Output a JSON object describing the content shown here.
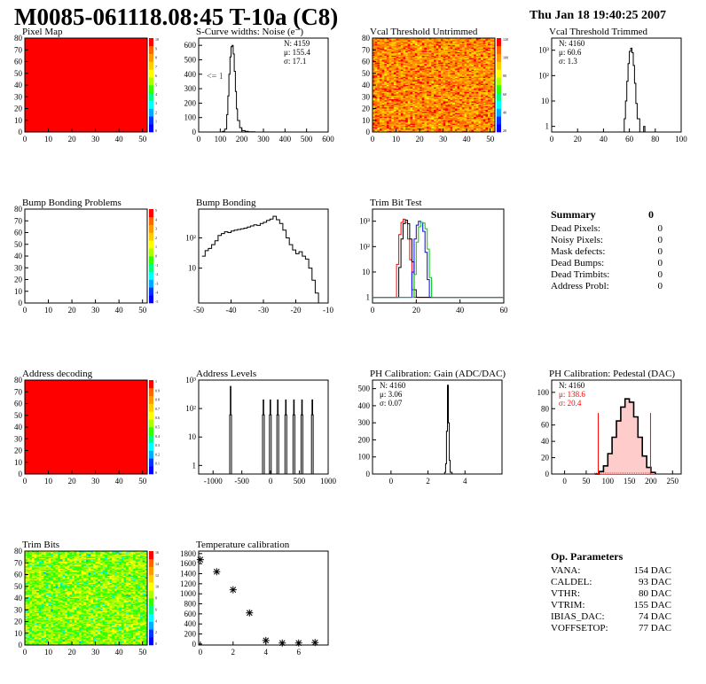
{
  "page": {
    "title": "M0085-061118.08:45 T-10a (C8)",
    "date": "Thu Jan 18 19:40:25 2007"
  },
  "colors": {
    "red": "#ff0000",
    "green": "#00cc00",
    "blue": "#0000ff",
    "black": "#000000",
    "palette": [
      "#0000ff",
      "#0033ff",
      "#00aaff",
      "#00ffff",
      "#00ff80",
      "#33ff00",
      "#aaff00",
      "#ffff00",
      "#ffcc00",
      "#ff9900",
      "#ff6600",
      "#ff0000"
    ]
  },
  "chart_data": [
    {
      "id": "pixel-map",
      "type": "heatmap",
      "title": "Pixel Map",
      "xlim": [
        0,
        52
      ],
      "ylim": [
        0,
        80
      ],
      "xticks": [
        "0",
        "10",
        "20",
        "30",
        "40",
        "50"
      ],
      "yticks": [
        "0",
        "10",
        "20",
        "30",
        "40",
        "50",
        "60",
        "70",
        "80"
      ],
      "fill": "uniform",
      "fill_level": 1.0,
      "colorbar_labels": [
        "10",
        "9",
        "8",
        "7",
        "6",
        "5",
        "4",
        "3",
        "2",
        "1",
        "0"
      ]
    },
    {
      "id": "scurve-noise",
      "type": "line",
      "title": "S-Curve widths: Noise (e⁻)",
      "xlim": [
        0,
        600
      ],
      "ylim": [
        0,
        650
      ],
      "xticks": [
        "0",
        "100",
        "200",
        "300",
        "400",
        "500",
        "600"
      ],
      "yticks": [
        "0",
        "100",
        "200",
        "300",
        "400",
        "500",
        "600"
      ],
      "annotation": "<= 1",
      "stats": [
        "N: 4159",
        "μ: 155.4",
        "σ: 17.1"
      ],
      "series": [
        {
          "x": [
            100,
            110,
            120,
            130,
            135,
            140,
            145,
            150,
            155,
            160,
            165,
            170,
            175,
            180,
            190,
            200,
            215,
            230,
            260
          ],
          "y": [
            0,
            5,
            20,
            120,
            250,
            400,
            520,
            590,
            600,
            540,
            420,
            280,
            160,
            80,
            30,
            10,
            4,
            2,
            0
          ]
        }
      ]
    },
    {
      "id": "vcal-untrimmed",
      "type": "heatmap",
      "title": "Vcal Threshold Untrimmed",
      "xlim": [
        0,
        52
      ],
      "ylim": [
        0,
        80
      ],
      "xticks": [
        "0",
        "10",
        "20",
        "30",
        "40",
        "50"
      ],
      "yticks": [
        "0",
        "10",
        "20",
        "30",
        "40",
        "50",
        "60",
        "70",
        "80"
      ],
      "fill": "noise-hot",
      "fill_level": 0.85,
      "colorbar_labels": [
        "120",
        "100",
        "80",
        "60",
        "40",
        "20"
      ]
    },
    {
      "id": "vcal-trimmed",
      "type": "line",
      "title": "Vcal Threshold Trimmed",
      "ylog": true,
      "xlim": [
        0,
        100
      ],
      "ylim": [
        0.6,
        3000
      ],
      "xticks": [
        "0",
        "20",
        "40",
        "60",
        "80",
        "100"
      ],
      "yticks": [
        "1",
        "10",
        "10²",
        "10³"
      ],
      "stats": [
        "N: 4160",
        "μ: 60.6",
        "σ:  1.3"
      ],
      "series": [
        {
          "x": [
            54,
            56,
            57,
            58,
            59,
            60,
            61,
            62,
            63,
            64,
            65,
            66,
            68
          ],
          "y": [
            0.6,
            2,
            10,
            60,
            300,
            900,
            1200,
            800,
            250,
            50,
            8,
            2,
            0.6
          ]
        },
        {
          "x": [
            71,
            71,
            72,
            72
          ],
          "y": [
            0.6,
            1,
            1,
            0.6
          ]
        }
      ]
    },
    {
      "id": "bump-problems",
      "type": "heatmap",
      "title": "Bump Bonding Problems",
      "xlim": [
        0,
        52
      ],
      "ylim": [
        0,
        80
      ],
      "xticks": [
        "0",
        "10",
        "20",
        "30",
        "40",
        "50"
      ],
      "yticks": [
        "0",
        "10",
        "20",
        "30",
        "40",
        "50",
        "60",
        "70",
        "80"
      ],
      "fill": "empty",
      "fill_level": 0,
      "colorbar_labels": [
        "5",
        "4",
        "3",
        "2",
        "1",
        "0",
        "-1",
        "-2",
        "-3",
        "-4",
        "-5"
      ]
    },
    {
      "id": "bump-bonding",
      "type": "line",
      "title": "Bump Bonding",
      "ylog": true,
      "xlim": [
        -50,
        -10
      ],
      "ylim": [
        0.7,
        900
      ],
      "xticks": [
        "-50",
        "-40",
        "-30",
        "-20",
        "-10"
      ],
      "yticks": [
        "10",
        "10²"
      ],
      "series": [
        {
          "x": [
            -49,
            -48,
            -47,
            -46,
            -45,
            -44,
            -43,
            -42,
            -41,
            -40,
            -39,
            -38,
            -37,
            -36,
            -35,
            -34,
            -33,
            -32,
            -31,
            -30,
            -29,
            -28,
            -27,
            -26,
            -25,
            -24,
            -23,
            -22,
            -21,
            -20,
            -19,
            -18,
            -17,
            -16,
            -15,
            -14,
            -13
          ],
          "y": [
            25,
            38,
            45,
            60,
            80,
            120,
            140,
            160,
            150,
            170,
            180,
            190,
            200,
            210,
            230,
            250,
            270,
            260,
            300,
            330,
            380,
            420,
            520,
            400,
            300,
            180,
            100,
            60,
            40,
            30,
            35,
            25,
            20,
            10,
            4,
            1.5,
            0.7
          ]
        }
      ]
    },
    {
      "id": "trim-bit-test",
      "type": "line",
      "title": "Trim Bit Test",
      "ylog": true,
      "xlim": [
        0,
        60
      ],
      "ylim": [
        0.6,
        3000
      ],
      "xticks": [
        "0",
        "20",
        "40",
        "60"
      ],
      "yticks": [
        "1",
        "10",
        "10²",
        "10³"
      ],
      "series": [
        {
          "color": "red",
          "x": [
            0,
            10,
            11,
            12,
            13,
            14,
            15,
            16,
            17,
            18,
            19,
            60
          ],
          "y": [
            1,
            1,
            20,
            300,
            900,
            1200,
            900,
            200,
            30,
            2,
            1,
            1
          ]
        },
        {
          "color": "black",
          "x": [
            0,
            11,
            12,
            13,
            14,
            15,
            16,
            17,
            18,
            19,
            20,
            60
          ],
          "y": [
            1,
            1,
            15,
            200,
            800,
            1100,
            800,
            200,
            25,
            2,
            1,
            1
          ]
        },
        {
          "color": "blue",
          "x": [
            0,
            17,
            18,
            19,
            20,
            21,
            22,
            23,
            24,
            25,
            26,
            60
          ],
          "y": [
            1,
            1,
            10,
            200,
            700,
            1000,
            900,
            400,
            60,
            5,
            1,
            1
          ]
        },
        {
          "color": "green",
          "x": [
            0,
            18,
            19,
            20,
            21,
            22,
            23,
            24,
            25,
            26,
            27,
            60
          ],
          "y": [
            1,
            1,
            8,
            150,
            600,
            900,
            850,
            500,
            80,
            6,
            1,
            1
          ]
        }
      ]
    },
    {
      "id": "address-decoding",
      "type": "heatmap",
      "title": "Address decoding",
      "xlim": [
        0,
        52
      ],
      "ylim": [
        0,
        80
      ],
      "xticks": [
        "0",
        "10",
        "20",
        "30",
        "40",
        "50"
      ],
      "yticks": [
        "0",
        "10",
        "20",
        "30",
        "40",
        "50",
        "60",
        "70",
        "80"
      ],
      "fill": "uniform",
      "fill_level": 1.0,
      "colorbar_labels": [
        "1",
        "0.9",
        "0.8",
        "0.7",
        "0.6",
        "0.5",
        "0.4",
        "0.3",
        "0.2",
        "0.1",
        "0"
      ]
    },
    {
      "id": "address-levels",
      "type": "line",
      "title": "Address Levels",
      "ylog": true,
      "xlim": [
        -1250,
        1000
      ],
      "ylim": [
        0.5,
        1000
      ],
      "xticks": [
        "-1000",
        "-500",
        "0",
        "500",
        "1000"
      ],
      "yticks": [
        "1",
        "10",
        "10²",
        "10³"
      ],
      "series": [
        {
          "x": [
            -720,
            -710,
            -700,
            -690,
            -680,
            -150,
            -140,
            -130,
            -120,
            -110,
            -30,
            -20,
            -10,
            0,
            10,
            100,
            110,
            120,
            130,
            140,
            240,
            250,
            260,
            270,
            280,
            380,
            390,
            400,
            410,
            420,
            520,
            530,
            540,
            550,
            560,
            700,
            710,
            720,
            730,
            740
          ],
          "y": [
            0.5,
            60,
            600,
            60,
            0.5,
            0.5,
            60,
            200,
            60,
            0.5,
            0.5,
            60,
            200,
            60,
            0.5,
            0.5,
            60,
            200,
            60,
            0.5,
            0.5,
            60,
            200,
            60,
            0.5,
            0.5,
            60,
            200,
            60,
            0.5,
            0.5,
            60,
            200,
            60,
            0.5,
            0.5,
            60,
            200,
            60,
            0.5
          ]
        }
      ]
    },
    {
      "id": "ph-gain",
      "type": "line",
      "title": "PH Calibration: Gain (ADC/DAC)",
      "xlim": [
        -1,
        6
      ],
      "ylim": [
        0,
        550
      ],
      "xticks": [
        "0",
        "2",
        "4"
      ],
      "yticks": [
        "0",
        "100",
        "200",
        "300",
        "400",
        "500"
      ],
      "stats": [
        "N: 4160",
        "μ: 3.06",
        "σ: 0.07"
      ],
      "series": [
        {
          "x": [
            2.8,
            2.9,
            2.95,
            3.0,
            3.05,
            3.1,
            3.15,
            3.2,
            3.3
          ],
          "y": [
            0,
            10,
            60,
            250,
            520,
            300,
            80,
            10,
            0
          ]
        }
      ]
    },
    {
      "id": "ph-pedestal",
      "type": "line",
      "title": "PH Calibration: Pedestal (DAC)",
      "xlim": [
        -30,
        270
      ],
      "ylim": [
        0,
        115
      ],
      "xticks": [
        "0",
        "50",
        "100",
        "150",
        "200",
        "250"
      ],
      "yticks": [
        "0",
        "20",
        "40",
        "60",
        "80",
        "100"
      ],
      "stats": [
        "N: 4160",
        "μ: 138.6",
        "σ: 20.4"
      ],
      "stats_colors": [
        "black",
        "red",
        "red"
      ],
      "markers": [
        78,
        199
      ],
      "series": [
        {
          "x": [
            70,
            80,
            90,
            100,
            110,
            120,
            130,
            140,
            150,
            160,
            170,
            180,
            190,
            200,
            210
          ],
          "y": [
            0,
            3,
            10,
            25,
            45,
            65,
            82,
            92,
            88,
            70,
            45,
            22,
            8,
            2,
            0
          ]
        }
      ]
    },
    {
      "id": "trim-bits",
      "type": "heatmap",
      "title": "Trim Bits",
      "xlim": [
        0,
        52
      ],
      "ylim": [
        0,
        80
      ],
      "xticks": [
        "0",
        "10",
        "20",
        "30",
        "40",
        "50"
      ],
      "yticks": [
        "0",
        "10",
        "20",
        "30",
        "40",
        "50",
        "60",
        "70",
        "80"
      ],
      "fill": "noise-green",
      "fill_level": 0.5,
      "colorbar_labels": [
        "16",
        "14",
        "12",
        "10",
        "8",
        "6",
        "4",
        "2",
        "0"
      ]
    },
    {
      "id": "temperature-calibration",
      "type": "scatter",
      "title": "Temperature calibration",
      "xlim": [
        -0.1,
        7.8
      ],
      "ylim": [
        -20,
        1850
      ],
      "xticks": [
        "0",
        "2",
        "4",
        "6"
      ],
      "yticks": [
        "0",
        "200",
        "400",
        "600",
        "800",
        "1000",
        "1200",
        "1400",
        "1600",
        "1800"
      ],
      "series": [
        {
          "x": [
            0,
            1,
            2,
            3,
            4,
            5,
            6,
            7
          ],
          "y": [
            1680,
            1440,
            1080,
            620,
            70,
            20,
            20,
            30
          ]
        }
      ]
    }
  ],
  "summary": {
    "header": "Summary",
    "header_value": "0",
    "rows": [
      {
        "label": "Dead Pixels:",
        "value": "0"
      },
      {
        "label": "Noisy Pixels:",
        "value": "0"
      },
      {
        "label": "Mask defects:",
        "value": "0"
      },
      {
        "label": "Dead Bumps:",
        "value": "0"
      },
      {
        "label": "Dead Trimbits:",
        "value": "0"
      },
      {
        "label": "Address Probl:",
        "value": "0"
      }
    ]
  },
  "op_params": {
    "header": "Op. Parameters",
    "rows": [
      {
        "label": "VANA:",
        "value": "154 DAC"
      },
      {
        "label": "CALDEL:",
        "value": "93 DAC"
      },
      {
        "label": "VTHR:",
        "value": "80 DAC"
      },
      {
        "label": "VTRIM:",
        "value": "155 DAC"
      },
      {
        "label": "IBIAS_DAC:",
        "value": "74 DAC"
      },
      {
        "label": "VOFFSETOP:",
        "value": "77 DAC"
      }
    ]
  }
}
